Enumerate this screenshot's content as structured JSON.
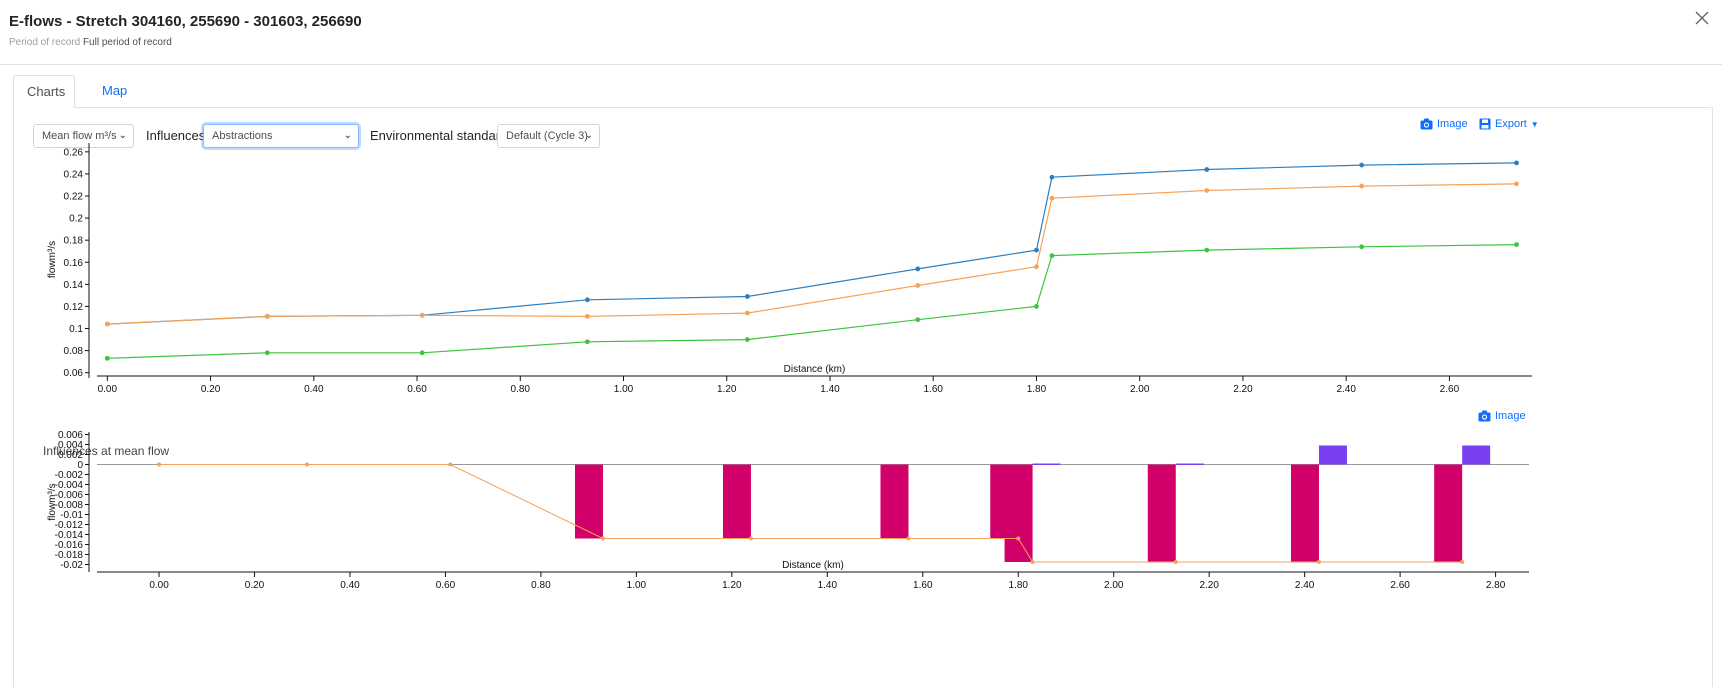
{
  "dialog": {
    "title": "E-flows - Stretch 304160, 255690 - 301603, 256690",
    "period_label": "Period of record",
    "period_value": "Full period of record"
  },
  "tabs": [
    {
      "label": "Charts",
      "active": true
    },
    {
      "label": "Map",
      "active": false
    }
  ],
  "controls": {
    "measure_select": "Mean flow m³/s",
    "influences_label": "Influences",
    "influences_select": "Abstractions",
    "env_standard_label": "Environmental standard",
    "env_standard_select": "Default (Cycle 3)",
    "image_label": "Image",
    "export_label": "Export"
  },
  "lower_section": {
    "title": "Influences at mean flow",
    "image_label": "Image"
  },
  "colors": {
    "blue": "#2f7fbf",
    "orange": "#f5a25a",
    "green": "#3ec43e",
    "magenta": "#d1006a",
    "purple": "#7b3ff2",
    "link": "#0d6efd"
  },
  "chart_data": [
    {
      "type": "line",
      "title": "",
      "xlabel": "Distance (km)",
      "ylabel": "flowm³/s",
      "xlim": [
        -0.02,
        2.76
      ],
      "ylim": [
        0.057,
        0.268
      ],
      "xticks": [
        "0.00",
        "0.20",
        "0.40",
        "0.60",
        "0.80",
        "1.00",
        "1.20",
        "1.40",
        "1.60",
        "1.80",
        "2.00",
        "2.20",
        "2.40",
        "2.60"
      ],
      "yticks": [
        "0.26",
        "0.24",
        "0.22",
        "0.2",
        "0.18",
        "0.16",
        "0.14",
        "0.12",
        "0.1",
        "0.08",
        "0.06"
      ],
      "x": [
        0.0,
        0.31,
        0.61,
        0.93,
        1.24,
        1.57,
        1.8,
        1.83,
        2.13,
        2.43,
        2.73
      ],
      "series": [
        {
          "color": "blue",
          "values": [
            0.104,
            0.111,
            0.112,
            0.126,
            0.129,
            0.154,
            0.171,
            0.237,
            0.244,
            0.248,
            0.25
          ]
        },
        {
          "color": "orange",
          "values": [
            0.104,
            0.111,
            0.112,
            0.111,
            0.114,
            0.139,
            0.156,
            0.218,
            0.225,
            0.229,
            0.231
          ]
        },
        {
          "color": "green",
          "values": [
            0.073,
            0.078,
            0.078,
            0.088,
            0.09,
            0.108,
            0.12,
            0.166,
            0.171,
            0.174,
            0.176
          ]
        }
      ]
    },
    {
      "type": "bar",
      "title": "",
      "xlabel": "Distance (km)",
      "ylabel": "flowm³/s",
      "xlim": [
        -0.13,
        2.87
      ],
      "ylim": [
        -0.0215,
        0.0065
      ],
      "xticks": [
        "0.00",
        "0.20",
        "0.40",
        "0.60",
        "0.80",
        "1.00",
        "1.20",
        "1.40",
        "1.60",
        "1.80",
        "2.00",
        "2.20",
        "2.40",
        "2.60",
        "2.80"
      ],
      "yticks": [
        "0.006",
        "0.004",
        "0.002",
        "0",
        "-0.002",
        "-0.004",
        "-0.006",
        "-0.008",
        "-0.01",
        "-0.012",
        "-0.014",
        "-0.016",
        "-0.018",
        "-0.02"
      ],
      "bars_magenta": [
        {
          "x": 0.93,
          "value": -0.0148
        },
        {
          "x": 1.24,
          "value": -0.0148
        },
        {
          "x": 1.57,
          "value": -0.0148
        },
        {
          "x": 1.8,
          "value": -0.0148
        },
        {
          "x": 1.83,
          "value": -0.0195
        },
        {
          "x": 2.13,
          "value": -0.0195
        },
        {
          "x": 2.43,
          "value": -0.0195
        },
        {
          "x": 2.73,
          "value": -0.0195
        }
      ],
      "bars_purple": [
        {
          "x": 1.83,
          "value": 0.0002
        },
        {
          "x": 2.13,
          "value": 0.0002
        },
        {
          "x": 2.43,
          "value": 0.0038
        },
        {
          "x": 2.73,
          "value": 0.0038
        }
      ],
      "line_orange": {
        "x": [
          0.0,
          0.31,
          0.61,
          0.93,
          1.24,
          1.57,
          1.8,
          1.83,
          2.13,
          2.43,
          2.73
        ],
        "values": [
          0,
          0,
          0,
          -0.0148,
          -0.0148,
          -0.0148,
          -0.0148,
          -0.0195,
          -0.0195,
          -0.0195,
          -0.0195
        ]
      }
    }
  ]
}
